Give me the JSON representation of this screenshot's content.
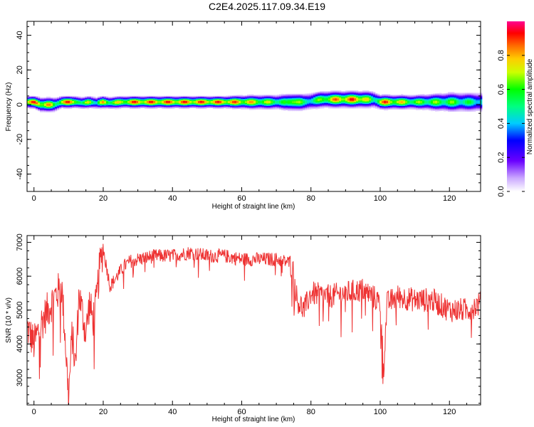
{
  "title": "C2E4.2025.117.09.34.E19",
  "colors": {
    "snr_line": "#ee3333",
    "axis": "#000000"
  },
  "chart_data": [
    {
      "type": "heatmap",
      "xlabel": "Height of straight line (km)",
      "ylabel": "Frequency (Hz)",
      "xlim": [
        -2,
        129
      ],
      "ylim": [
        -50,
        48
      ],
      "x_ticks": [
        0,
        20,
        40,
        60,
        80,
        100,
        120
      ],
      "y_ticks": [
        -40,
        -20,
        0,
        20,
        40
      ],
      "x_tick_labels": [
        "0",
        "20",
        "40",
        "60",
        "80",
        "100",
        "120"
      ],
      "y_tick_labels": [
        "-40",
        "-20",
        "0",
        "20",
        "40"
      ],
      "colorbar": {
        "label": "Normalized spectral amplitude",
        "range": [
          0,
          1
        ],
        "ticks": [
          0.0,
          0.2,
          0.4,
          0.6,
          0.8
        ],
        "tick_labels": [
          "0.0",
          "0.2",
          "0.4",
          "0.6",
          "0.8"
        ]
      },
      "band": {
        "x": [
          -2,
          0,
          2,
          4,
          6,
          8,
          10,
          12,
          14,
          16,
          18,
          20,
          22,
          25,
          28,
          35,
          45,
          55,
          60,
          65,
          70,
          73,
          75,
          78,
          80,
          83,
          85,
          90,
          95,
          98,
          100,
          101,
          105,
          110,
          115,
          120,
          125,
          129
        ],
        "center_hz": [
          1.5,
          1.5,
          0,
          0,
          0,
          1.5,
          1.5,
          1.5,
          1.0,
          1.5,
          1.0,
          1.5,
          1.0,
          1.5,
          1.5,
          1.5,
          1.5,
          1.5,
          1.5,
          1.5,
          1.5,
          1.5,
          1.5,
          1.5,
          2.0,
          3.0,
          3.0,
          3.0,
          3.0,
          3.0,
          1.5,
          1.5,
          1.5,
          1.5,
          1.5,
          1.5,
          1.5,
          1.5
        ],
        "halfwidth_hz": [
          2.5,
          2.5,
          3,
          3,
          3,
          2.5,
          2.5,
          2.5,
          2.5,
          2.5,
          2.5,
          2.5,
          2.5,
          2.5,
          2.5,
          2.5,
          2.5,
          2.5,
          2.8,
          3,
          3,
          3.5,
          3.5,
          3.5,
          3.5,
          3.5,
          3.5,
          3.5,
          3.5,
          3.5,
          3,
          3,
          3,
          3,
          3.5,
          4,
          4,
          4
        ],
        "peak": [
          0.95,
          0.95,
          0.9,
          0.95,
          0.6,
          0.9,
          0.95,
          0.9,
          0.5,
          0.95,
          0.5,
          0.9,
          0.75,
          0.8,
          0.95,
          0.95,
          0.95,
          0.95,
          0.9,
          0.8,
          0.7,
          0.6,
          0.95,
          0.55,
          0.6,
          0.7,
          0.85,
          0.95,
          0.95,
          0.55,
          0.9,
          0.95,
          0.85,
          0.7,
          0.7,
          0.7,
          0.6,
          0.55
        ]
      }
    },
    {
      "type": "line",
      "xlabel": "Height of straight line (km)",
      "ylabel": "SNR (10 * v/v)",
      "xlim": [
        -2,
        129
      ],
      "ylim": [
        2200,
        7200
      ],
      "x_ticks": [
        0,
        20,
        40,
        60,
        80,
        100,
        120
      ],
      "y_ticks": [
        3000,
        4000,
        5000,
        6000,
        7000
      ],
      "x_tick_labels": [
        "0",
        "20",
        "40",
        "60",
        "80",
        "100",
        "120"
      ],
      "y_tick_labels": [
        "3000",
        "4000",
        "5000",
        "6000",
        "7000"
      ],
      "x": [
        -2,
        0,
        2,
        4,
        6,
        8,
        9,
        10,
        11,
        12,
        13,
        14,
        15,
        16,
        17,
        18,
        19,
        20,
        22,
        24,
        26,
        28,
        30,
        35,
        40,
        45,
        50,
        55,
        60,
        65,
        70,
        72,
        74,
        75,
        76,
        78,
        80,
        85,
        90,
        95,
        98,
        100,
        101,
        102,
        105,
        110,
        115,
        120,
        125,
        129
      ],
      "y": [
        4500,
        4000,
        4600,
        5000,
        5400,
        5700,
        4200,
        2400,
        4300,
        3300,
        5500,
        4900,
        4300,
        5200,
        4700,
        5200,
        6300,
        6800,
        5700,
        6000,
        6300,
        6450,
        6500,
        6600,
        6600,
        6700,
        6600,
        6600,
        6500,
        6500,
        6500,
        6450,
        6400,
        6100,
        5300,
        5000,
        5500,
        5400,
        5500,
        5600,
        5400,
        5200,
        3300,
        5200,
        5400,
        5300,
        5300,
        5000,
        5000,
        5200
      ],
      "noise": 260
    }
  ]
}
